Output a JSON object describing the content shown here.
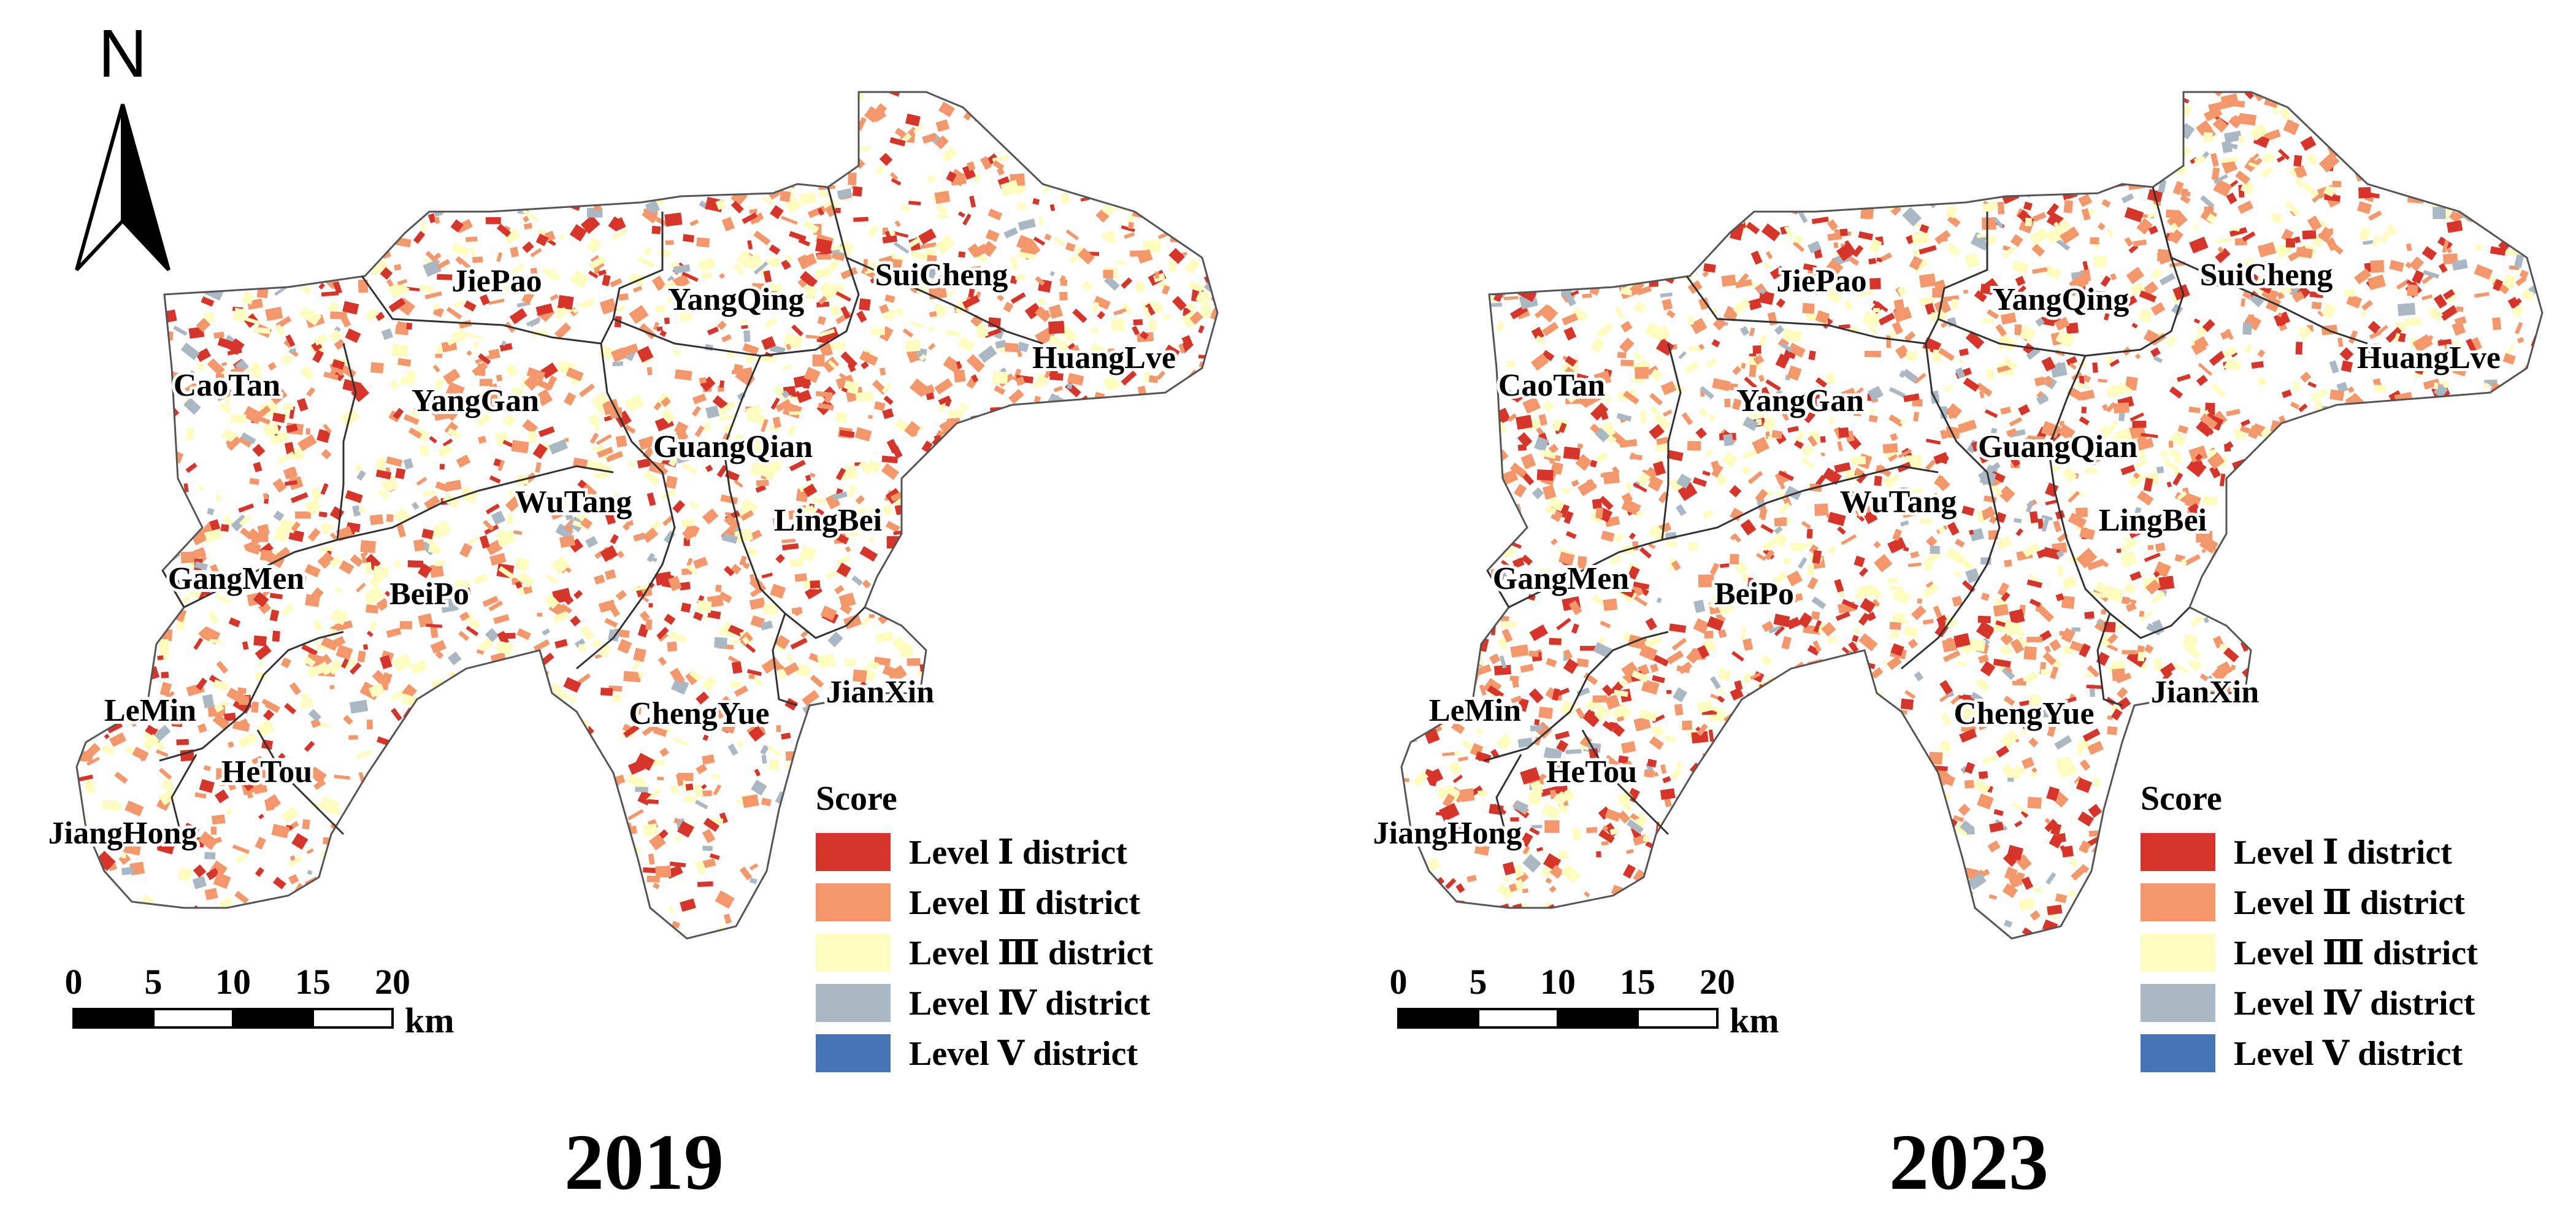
{
  "map_2019": {
    "year": "2019",
    "legend_title": "Score",
    "legend": [
      {
        "label": "Level Ⅰ district",
        "color": "#d7342a"
      },
      {
        "label": "Level Ⅱ district",
        "color": "#f4976a"
      },
      {
        "label": "Level Ⅲ district",
        "color": "#fefcbe"
      },
      {
        "label": "Level Ⅳ district",
        "color": "#a9b8c3"
      },
      {
        "label": "Level Ⅴ district",
        "color": "#4575b4"
      }
    ],
    "scale": {
      "ticks": [
        "0",
        "5",
        "10",
        "15",
        "20"
      ],
      "unit": "km"
    },
    "north_label": "N",
    "towns": [
      "JiePao",
      "YangQing",
      "SuiCheng",
      "HuangLve",
      "CaoTan",
      "YangGan",
      "GuangQian",
      "WuTang",
      "LingBei",
      "GangMen",
      "BeiPo",
      "JianXin",
      "ChengYue",
      "LeMin",
      "HeTou",
      "JiangHong"
    ]
  },
  "map_2023": {
    "year": "2023",
    "legend_title": "Score",
    "legend": [
      {
        "label": "Level Ⅰ district",
        "color": "#d7342a"
      },
      {
        "label": "Level Ⅱ district",
        "color": "#f4976a"
      },
      {
        "label": "Level Ⅲ district",
        "color": "#fefcbe"
      },
      {
        "label": "Level Ⅳ district",
        "color": "#a9b8c3"
      },
      {
        "label": "Level Ⅴ district",
        "color": "#4575b4"
      }
    ],
    "scale": {
      "ticks": [
        "0",
        "5",
        "10",
        "15",
        "20"
      ],
      "unit": "km"
    },
    "towns": [
      "JiePao",
      "YangQing",
      "SuiCheng",
      "HuangLve",
      "CaoTan",
      "YangGan",
      "GuangQian",
      "WuTang",
      "LingBei",
      "GangMen",
      "BeiPo",
      "JianXin",
      "ChengYue",
      "LeMin",
      "HeTou",
      "JiangHong"
    ]
  }
}
